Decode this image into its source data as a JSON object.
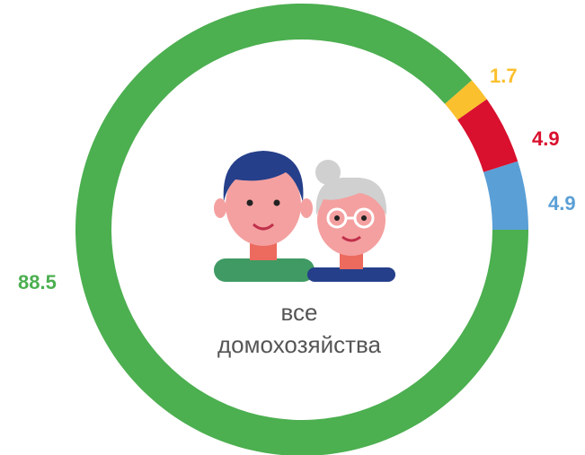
{
  "chart_data": {
    "type": "donut",
    "values": [
      88.5,
      1.7,
      4.9,
      4.9
    ],
    "colors": [
      "#4caf50",
      "#fbc02d",
      "#d9102e",
      "#5a9fd6"
    ],
    "center_label": [
      "все",
      "домохозяйства"
    ]
  }
}
